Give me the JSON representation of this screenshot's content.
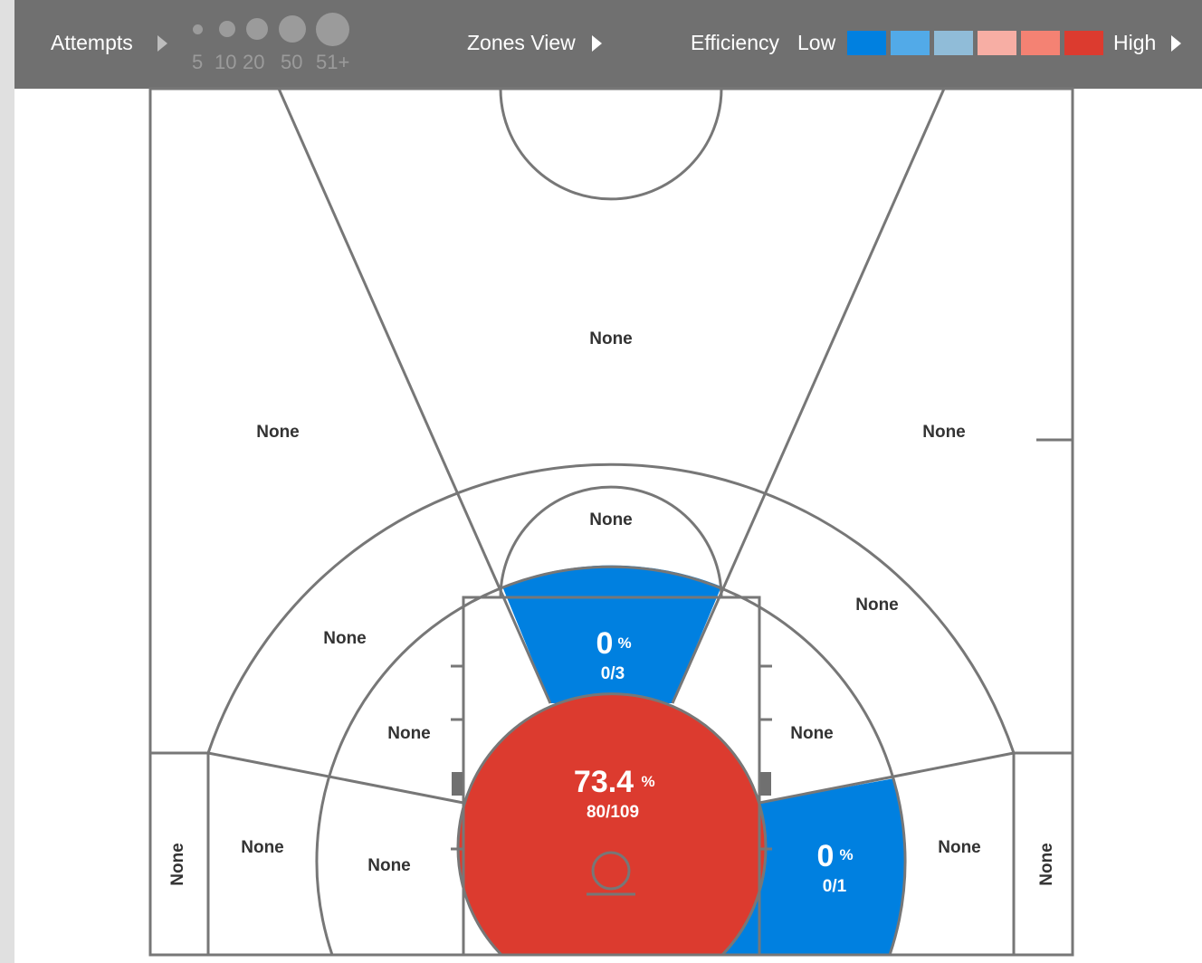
{
  "header": {
    "attempts_label": "Attempts",
    "size_legend": [
      "5",
      "10",
      "20",
      "50",
      "51+"
    ],
    "view_label": "Zones View",
    "efficiency_label": "Efficiency",
    "low_label": "Low",
    "high_label": "High",
    "efficiency_colors": [
      "#0080e0",
      "#52aae8",
      "#90bcd8",
      "#f7aea4",
      "#f48273",
      "#dc3b2f"
    ]
  },
  "zones": {
    "top_key": "None",
    "left_wing_three": "None",
    "right_wing_three": "None",
    "free_throw_top": "None",
    "left_mid_upper": "None",
    "right_mid_upper": "None",
    "left_mid_inner": "None",
    "right_mid_inner": "None",
    "left_baseline_mid": "None",
    "left_short_mid": "None",
    "right_baseline_mid": "None",
    "left_corner_three": "None",
    "right_corner_three": "None",
    "paint_upper": {
      "pct": "0",
      "pct_sign": "%",
      "made_att": "0/3"
    },
    "restricted_area": {
      "pct": "73.4",
      "pct_sign": "%",
      "made_att": "80/109"
    },
    "right_short_mid": {
      "pct": "0",
      "pct_sign": "%",
      "made_att": "0/1"
    }
  }
}
